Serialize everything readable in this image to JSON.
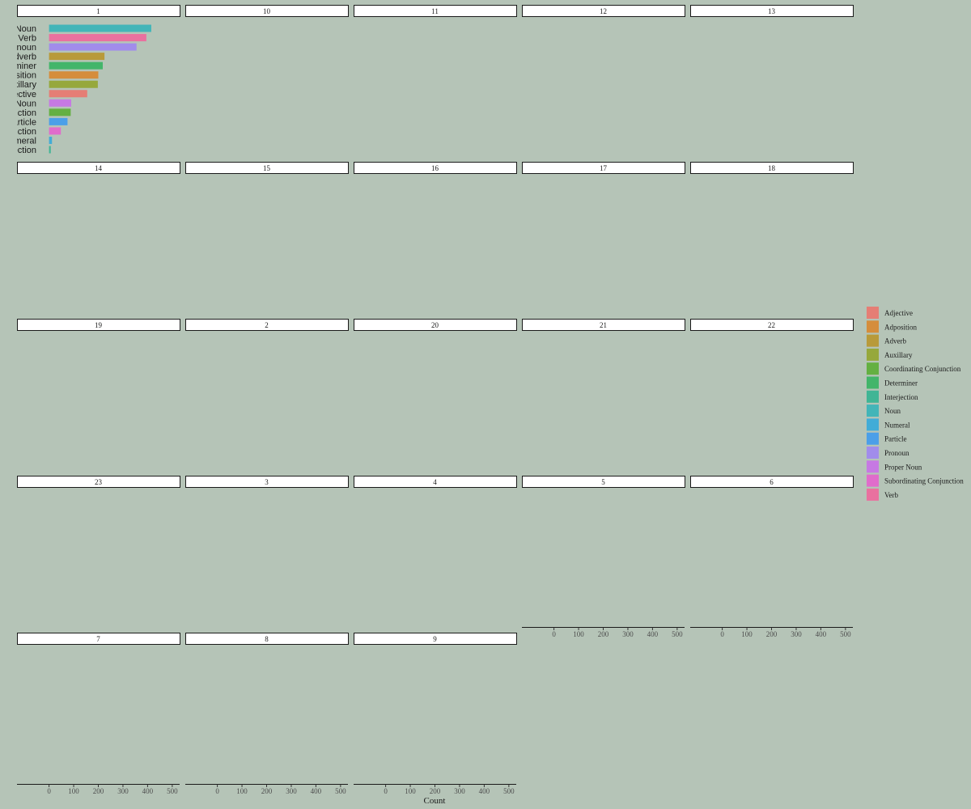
{
  "chart_data": {
    "type": "bar",
    "orientation": "horizontal",
    "xlabel": "Count",
    "ylabel": "",
    "xlim": [
      -130,
      530
    ],
    "xticks": [
      0,
      100,
      200,
      300,
      400,
      500
    ],
    "facet_columns": 5,
    "facets": [
      "1",
      "10",
      "11",
      "12",
      "13",
      "14",
      "15",
      "16",
      "17",
      "18",
      "19",
      "2",
      "20",
      "21",
      "22",
      "23",
      "3",
      "4",
      "5",
      "6",
      "7",
      "8",
      "9"
    ],
    "categories": [
      "Noun",
      "Verb",
      "Pronoun",
      "Adverb",
      "Determiner",
      "Adposition",
      "Auxillary",
      "Adjective",
      "Proper Noun",
      "Coordinating Conjunction",
      "Particle",
      "Subordinating Conjunction",
      "Numeral",
      "Interjection"
    ],
    "series": [
      {
        "facet": "1",
        "values": [
          415,
          395,
          355,
          225,
          218,
          200,
          198,
          155,
          90,
          88,
          75,
          48,
          12,
          7
        ]
      }
    ],
    "legend": {
      "position": "right",
      "entries": [
        {
          "label": "Adjective",
          "color": "#e57e75"
        },
        {
          "label": "Adposition",
          "color": "#d58d3c"
        },
        {
          "label": "Adverb",
          "color": "#b89a3a"
        },
        {
          "label": "Auxillary",
          "color": "#96a83c"
        },
        {
          "label": "Coordinating Conjunction",
          "color": "#64b042"
        },
        {
          "label": "Determiner",
          "color": "#43b56a"
        },
        {
          "label": "Interjection",
          "color": "#40b595"
        },
        {
          "label": "Noun",
          "color": "#43b5b8"
        },
        {
          "label": "Numeral",
          "color": "#42acd7"
        },
        {
          "label": "Particle",
          "color": "#4b9fe8"
        },
        {
          "label": "Pronoun",
          "color": "#a18ceb"
        },
        {
          "label": "Proper Noun",
          "color": "#c679e3"
        },
        {
          "label": "Subordinating Conjunction",
          "color": "#e06ccb"
        },
        {
          "label": "Verb",
          "color": "#e9719f"
        }
      ]
    },
    "grid": false
  },
  "colors": {
    "background": "#b5c4b7",
    "strip_fill": "#ffffff",
    "strip_border": "#1a1a1a"
  }
}
